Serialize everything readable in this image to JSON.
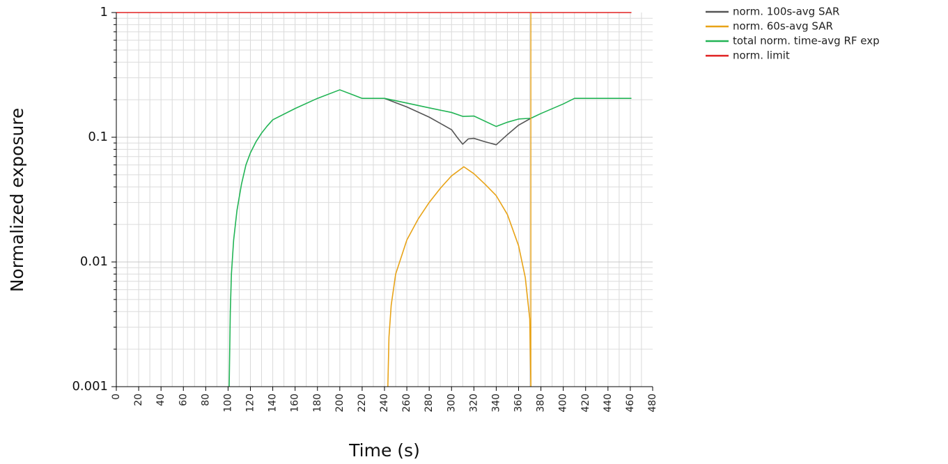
{
  "chart_data": {
    "type": "line",
    "title": "",
    "xlabel": "Time (s)",
    "ylabel": "Normalized exposure",
    "xlim": [
      0,
      480
    ],
    "ylim": [
      0.001,
      1
    ],
    "yscale": "log",
    "x_ticks": [
      "0",
      "20",
      "40",
      "60",
      "80",
      "100",
      "120",
      "140",
      "160",
      "180",
      "200",
      "220",
      "240",
      "260",
      "280",
      "300",
      "320",
      "340",
      "360",
      "380",
      "400",
      "420",
      "440",
      "460",
      "480"
    ],
    "y_ticks": [
      {
        "value": 1,
        "label": "1"
      },
      {
        "value": 0.1,
        "label": "0.1"
      },
      {
        "value": 0.01,
        "label": "0.01"
      },
      {
        "value": 0.001,
        "label": "0.001"
      }
    ],
    "grid": true,
    "legend_position": "top-right, outside plot",
    "series": [
      {
        "name": "norm. 100s-avg SAR",
        "color": "#555555",
        "points": [
          [
            240,
            0.205
          ],
          [
            260,
            0.175
          ],
          [
            280,
            0.145
          ],
          [
            300,
            0.115
          ],
          [
            305,
            0.1
          ],
          [
            310,
            0.088
          ],
          [
            315,
            0.097
          ],
          [
            320,
            0.098
          ],
          [
            330,
            0.092
          ],
          [
            340,
            0.087
          ],
          [
            350,
            0.105
          ],
          [
            360,
            0.125
          ],
          [
            371,
            0.142
          ]
        ]
      },
      {
        "name": "norm. 60s-avg SAR",
        "color": "#e8a317",
        "points": [
          [
            243,
            0.001
          ],
          [
            244,
            0.0025
          ],
          [
            246,
            0.0045
          ],
          [
            250,
            0.008
          ],
          [
            260,
            0.015
          ],
          [
            270,
            0.022
          ],
          [
            280,
            0.03
          ],
          [
            290,
            0.039
          ],
          [
            300,
            0.049
          ],
          [
            311,
            0.058
          ],
          [
            320,
            0.051
          ],
          [
            330,
            0.042
          ],
          [
            340,
            0.034
          ],
          [
            350,
            0.024
          ],
          [
            360,
            0.0135
          ],
          [
            366,
            0.0075
          ],
          [
            370,
            0.0035
          ],
          [
            371,
            0.001
          ]
        ]
      },
      {
        "name": "total norm. time-avg RF exp",
        "color": "#22b455",
        "points": [
          [
            101,
            0.001
          ],
          [
            102,
            0.004
          ],
          [
            103,
            0.008
          ],
          [
            105,
            0.015
          ],
          [
            108,
            0.026
          ],
          [
            112,
            0.042
          ],
          [
            116,
            0.06
          ],
          [
            120,
            0.075
          ],
          [
            125,
            0.092
          ],
          [
            130,
            0.108
          ],
          [
            135,
            0.123
          ],
          [
            140,
            0.138
          ],
          [
            160,
            0.17
          ],
          [
            180,
            0.205
          ],
          [
            200,
            0.24
          ],
          [
            220,
            0.205
          ],
          [
            240,
            0.205
          ],
          [
            260,
            0.188
          ],
          [
            280,
            0.172
          ],
          [
            300,
            0.158
          ],
          [
            310,
            0.147
          ],
          [
            320,
            0.148
          ],
          [
            340,
            0.122
          ],
          [
            350,
            0.132
          ],
          [
            360,
            0.14
          ],
          [
            371,
            0.142
          ],
          [
            380,
            0.155
          ],
          [
            400,
            0.185
          ],
          [
            410,
            0.205
          ],
          [
            461,
            0.205
          ]
        ]
      },
      {
        "name": "norm. limit",
        "color": "#e02020",
        "points": [
          [
            0,
            1
          ],
          [
            461,
            1
          ]
        ]
      }
    ],
    "annotations": [
      {
        "type": "vertical-line",
        "x": 371,
        "color": "#e8a317"
      }
    ]
  }
}
